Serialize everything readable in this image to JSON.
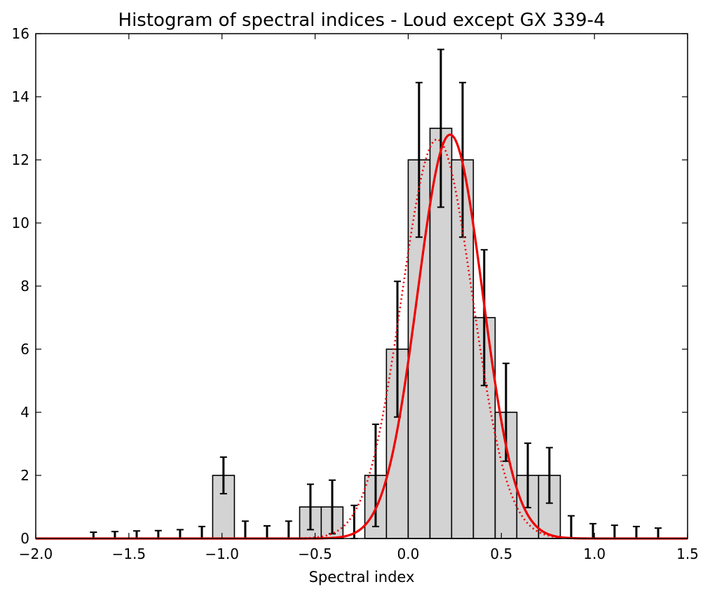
{
  "chart_data": {
    "type": "bar",
    "title": "Histogram of spectral indices - Loud except GX 339-4",
    "xlabel": "Spectral index",
    "ylabel": "",
    "xlim": [
      -2.0,
      1.5
    ],
    "ylim": [
      0,
      16
    ],
    "x_ticks": [
      "−2.0",
      "−1.5",
      "−1.0",
      "−0.5",
      "0.0",
      "0.5",
      "1.0",
      "1.5"
    ],
    "x_tick_values": [
      -2.0,
      -1.5,
      -1.0,
      -0.5,
      0.0,
      0.5,
      1.0,
      1.5
    ],
    "y_ticks": [
      "0",
      "2",
      "4",
      "6",
      "8",
      "10",
      "12",
      "14",
      "16"
    ],
    "y_tick_values": [
      0,
      2,
      4,
      6,
      8,
      10,
      12,
      14,
      16
    ],
    "grid": false,
    "bin_width": 0.1167,
    "bin_left_edges": [
      -1.75,
      -1.633,
      -1.517,
      -1.4,
      -1.283,
      -1.167,
      -1.05,
      -0.933,
      -0.817,
      -0.7,
      -0.583,
      -0.467,
      -0.35,
      -0.233,
      -0.117,
      0.0,
      0.117,
      0.233,
      0.35,
      0.467,
      0.583,
      0.7,
      0.817,
      0.933,
      1.05,
      1.167,
      1.283
    ],
    "counts": [
      0,
      0,
      0,
      0,
      0,
      0,
      2,
      0,
      0,
      0,
      1,
      1,
      0,
      2,
      6,
      12,
      13,
      12,
      7,
      4,
      2,
      2,
      0,
      0,
      0,
      0,
      0
    ],
    "error_bars": {
      "x": [
        -1.69,
        -1.575,
        -1.458,
        -1.342,
        -1.225,
        -1.108,
        -0.992,
        -0.875,
        -0.758,
        -0.642,
        -0.525,
        -0.408,
        -0.29,
        -0.175,
        -0.058,
        0.058,
        0.175,
        0.292,
        0.408,
        0.525,
        0.642,
        0.758,
        0.875,
        0.992,
        1.108,
        1.225,
        1.342
      ],
      "upper": [
        0.2,
        0.22,
        0.24,
        0.25,
        0.28,
        0.38,
        2.58,
        0.55,
        0.4,
        0.55,
        1.72,
        1.85,
        1.05,
        3.62,
        8.15,
        14.45,
        15.5,
        14.45,
        9.15,
        5.55,
        3.02,
        2.88,
        0.72,
        0.47,
        0.42,
        0.38,
        0.33
      ],
      "lower": [
        0,
        0,
        0,
        0,
        0,
        0,
        1.42,
        0,
        0,
        0,
        0.28,
        0.15,
        0,
        0.38,
        3.85,
        9.55,
        10.5,
        9.55,
        4.85,
        2.45,
        0.98,
        1.12,
        0,
        0,
        0,
        0,
        0
      ]
    },
    "series": [
      {
        "type": "bar",
        "color": "#d3d3d3",
        "edge_color": "#000000"
      },
      {
        "type": "line",
        "style": "solid",
        "color": "#ee0000",
        "model": "gaussian",
        "mu": 0.225,
        "sigma": 0.175,
        "amplitude": 12.8
      },
      {
        "type": "line",
        "style": "dotted",
        "color": "#ee0000",
        "model": "gaussian",
        "mu": 0.155,
        "sigma": 0.19,
        "amplitude": 12.65
      }
    ]
  }
}
